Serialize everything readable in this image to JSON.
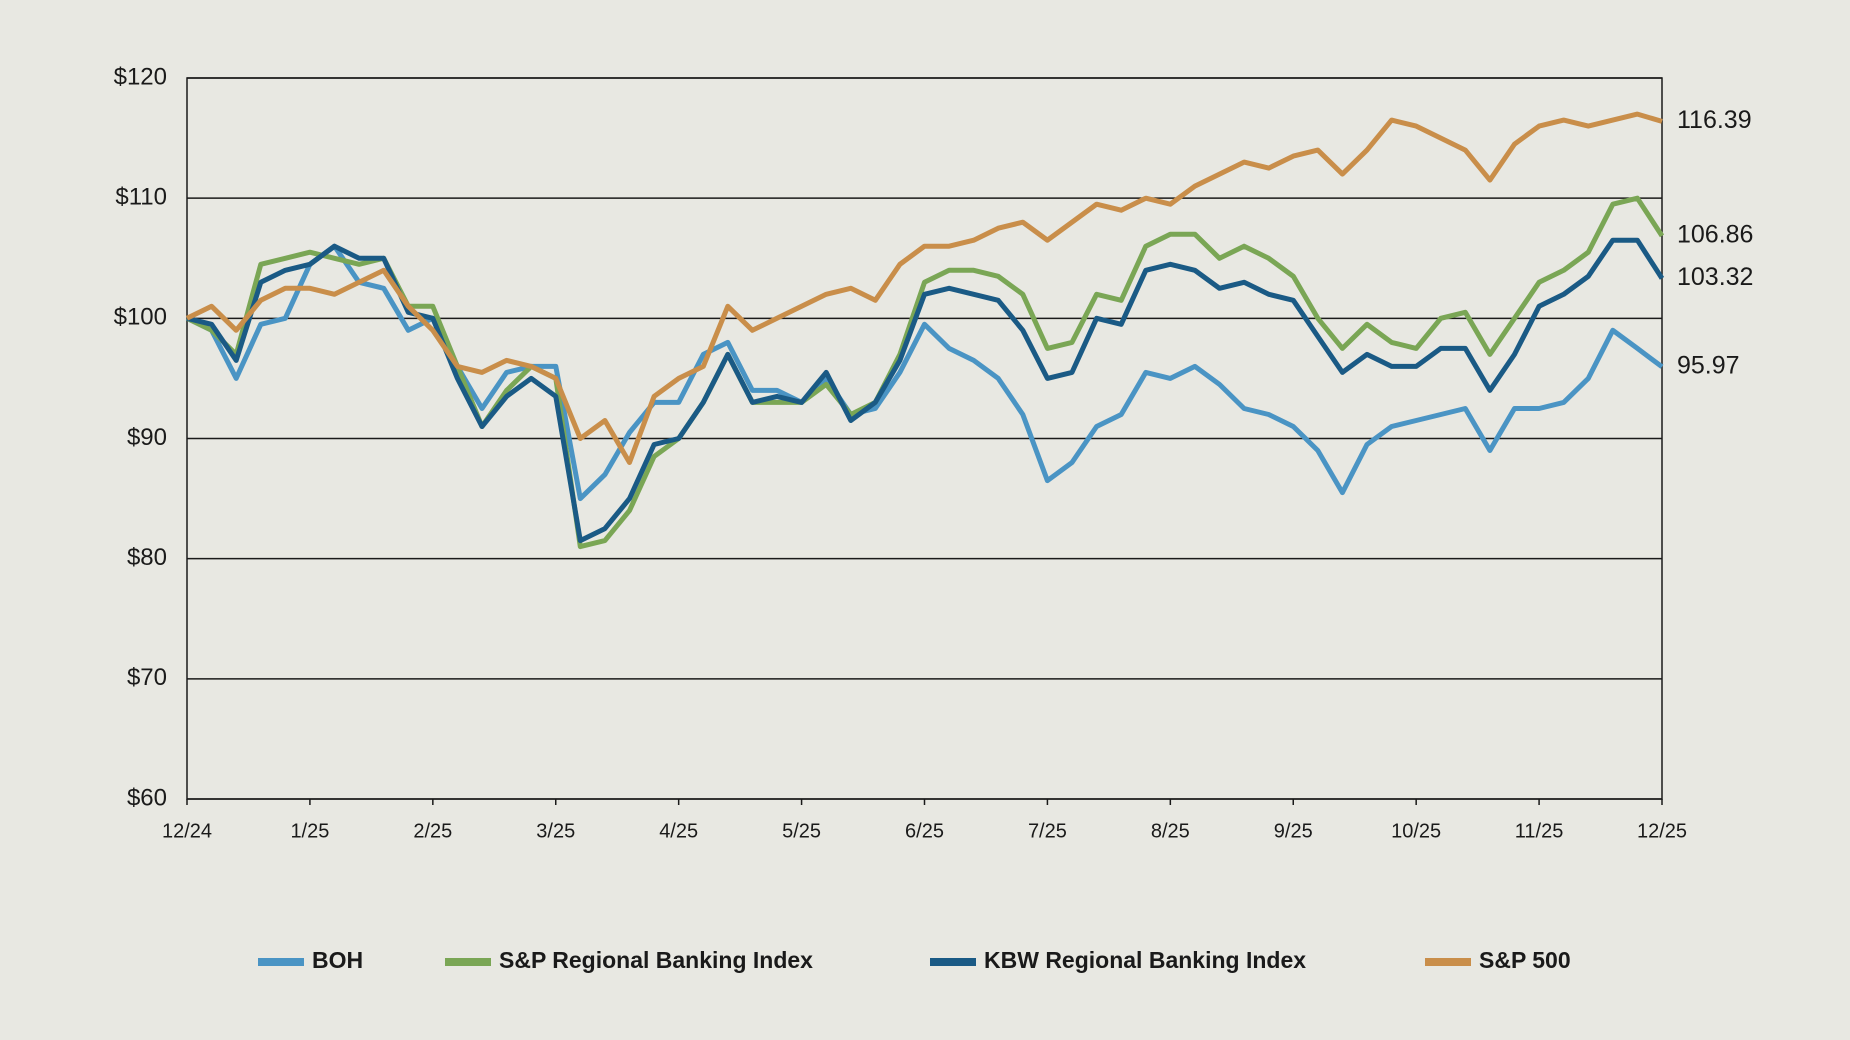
{
  "chart_data": {
    "type": "line",
    "x": [
      0,
      0.2,
      0.4,
      0.6,
      0.8,
      1,
      1.2,
      1.4,
      1.6,
      1.8,
      2,
      2.2,
      2.4,
      2.6,
      2.8,
      3,
      3.2,
      3.4,
      3.6,
      3.8,
      4,
      4.2,
      4.4,
      4.6,
      4.8,
      5,
      5.2,
      5.4,
      5.6,
      5.8,
      6,
      6.2,
      6.4,
      6.6,
      6.8,
      7,
      7.2,
      7.4,
      7.6,
      7.8,
      8,
      8.2,
      8.4,
      8.6,
      8.8,
      9,
      9.2,
      9.4,
      9.6,
      9.8,
      10,
      10.2,
      10.4,
      10.6,
      10.8,
      11,
      11.2,
      11.4,
      11.6,
      11.8,
      12
    ],
    "xlim": [
      0,
      12
    ],
    "xticks": [
      {
        "value": 0,
        "label": "12/24"
      },
      {
        "value": 1,
        "label": "1/25"
      },
      {
        "value": 2,
        "label": "2/25"
      },
      {
        "value": 3,
        "label": "3/25"
      },
      {
        "value": 4,
        "label": "4/25"
      },
      {
        "value": 5,
        "label": "5/25"
      },
      {
        "value": 6,
        "label": "6/25"
      },
      {
        "value": 7,
        "label": "7/25"
      },
      {
        "value": 8,
        "label": "8/25"
      },
      {
        "value": 9,
        "label": "9/25"
      },
      {
        "value": 10,
        "label": "10/25"
      },
      {
        "value": 11,
        "label": "11/25"
      },
      {
        "value": 12,
        "label": "12/25"
      }
    ],
    "ylim": [
      60,
      120
    ],
    "yticks": [
      {
        "value": 60,
        "label": "$60"
      },
      {
        "value": 70,
        "label": "$70"
      },
      {
        "value": 80,
        "label": "$80"
      },
      {
        "value": 90,
        "label": "$90"
      },
      {
        "value": 100,
        "label": "$100"
      },
      {
        "value": 110,
        "label": "$110"
      },
      {
        "value": 120,
        "label": "$120"
      }
    ],
    "grid": true,
    "legend": "bottom",
    "series": [
      {
        "name": "BOH",
        "color": "#4a94c4",
        "values": [
          100,
          99,
          95,
          99.5,
          100,
          104.5,
          106,
          103,
          102.5,
          99,
          100,
          96,
          92.5,
          95.5,
          96,
          96,
          85,
          87,
          90.5,
          93,
          93,
          97,
          98,
          94,
          94,
          93,
          95,
          92,
          92.5,
          95.5,
          99.5,
          97.5,
          96.5,
          95,
          92,
          86.5,
          88,
          91,
          92,
          95.5,
          95,
          96,
          94.5,
          92.5,
          92,
          91,
          89,
          85.5,
          89.5,
          91,
          91.5,
          92,
          92.5,
          89,
          92.5,
          92.5,
          93,
          95,
          99,
          97.5,
          95.97
        ]
      },
      {
        "name": "S&P Regional Banking Index",
        "color": "#7aa655",
        "values": [
          100,
          99,
          97,
          104.5,
          105,
          105.5,
          105,
          104.5,
          105,
          101,
          101,
          96,
          91,
          94,
          96,
          95,
          81,
          81.5,
          84,
          88.5,
          90,
          93,
          97,
          93,
          93,
          93,
          94.5,
          92,
          93,
          97,
          103,
          104,
          104,
          103.5,
          102,
          97.5,
          98,
          102,
          101.5,
          106,
          107,
          107,
          105,
          106,
          105,
          103.5,
          100,
          97.5,
          99.5,
          98,
          97.5,
          100,
          100.5,
          97,
          100,
          103,
          104,
          105.5,
          109.5,
          110,
          106.86
        ]
      },
      {
        "name": "KBW Regional Banking Index",
        "color": "#1a5a85",
        "values": [
          100,
          99.5,
          96.5,
          103,
          104,
          104.5,
          106,
          105,
          105,
          100.5,
          100,
          95,
          91,
          93.5,
          95,
          93.5,
          81.5,
          82.5,
          85,
          89.5,
          90,
          93,
          97,
          93,
          93.5,
          93,
          95.5,
          91.5,
          93,
          96.5,
          102,
          102.5,
          102,
          101.5,
          99,
          95,
          95.5,
          100,
          99.5,
          104,
          104.5,
          104,
          102.5,
          103,
          102,
          101.5,
          98.5,
          95.5,
          97,
          96,
          96,
          97.5,
          97.5,
          94,
          97,
          101,
          102,
          103.5,
          106.5,
          106.5,
          103.32
        ]
      },
      {
        "name": "S&P 500",
        "color": "#c98e4a",
        "values": [
          100,
          101,
          99,
          101.5,
          102.5,
          102.5,
          102,
          103,
          104,
          101,
          99,
          96,
          95.5,
          96.5,
          96,
          95,
          90,
          91.5,
          88,
          93.5,
          95,
          96,
          101,
          99,
          100,
          101,
          102,
          102.5,
          101.5,
          104.5,
          106,
          106,
          106.5,
          107.5,
          108,
          106.5,
          108,
          109.5,
          109,
          110,
          109.5,
          111,
          112,
          113,
          112.5,
          113.5,
          114,
          112,
          114,
          116.5,
          116,
          115,
          114,
          111.5,
          114.5,
          116,
          116.5,
          116,
          116.5,
          117,
          116.39
        ]
      }
    ]
  }
}
